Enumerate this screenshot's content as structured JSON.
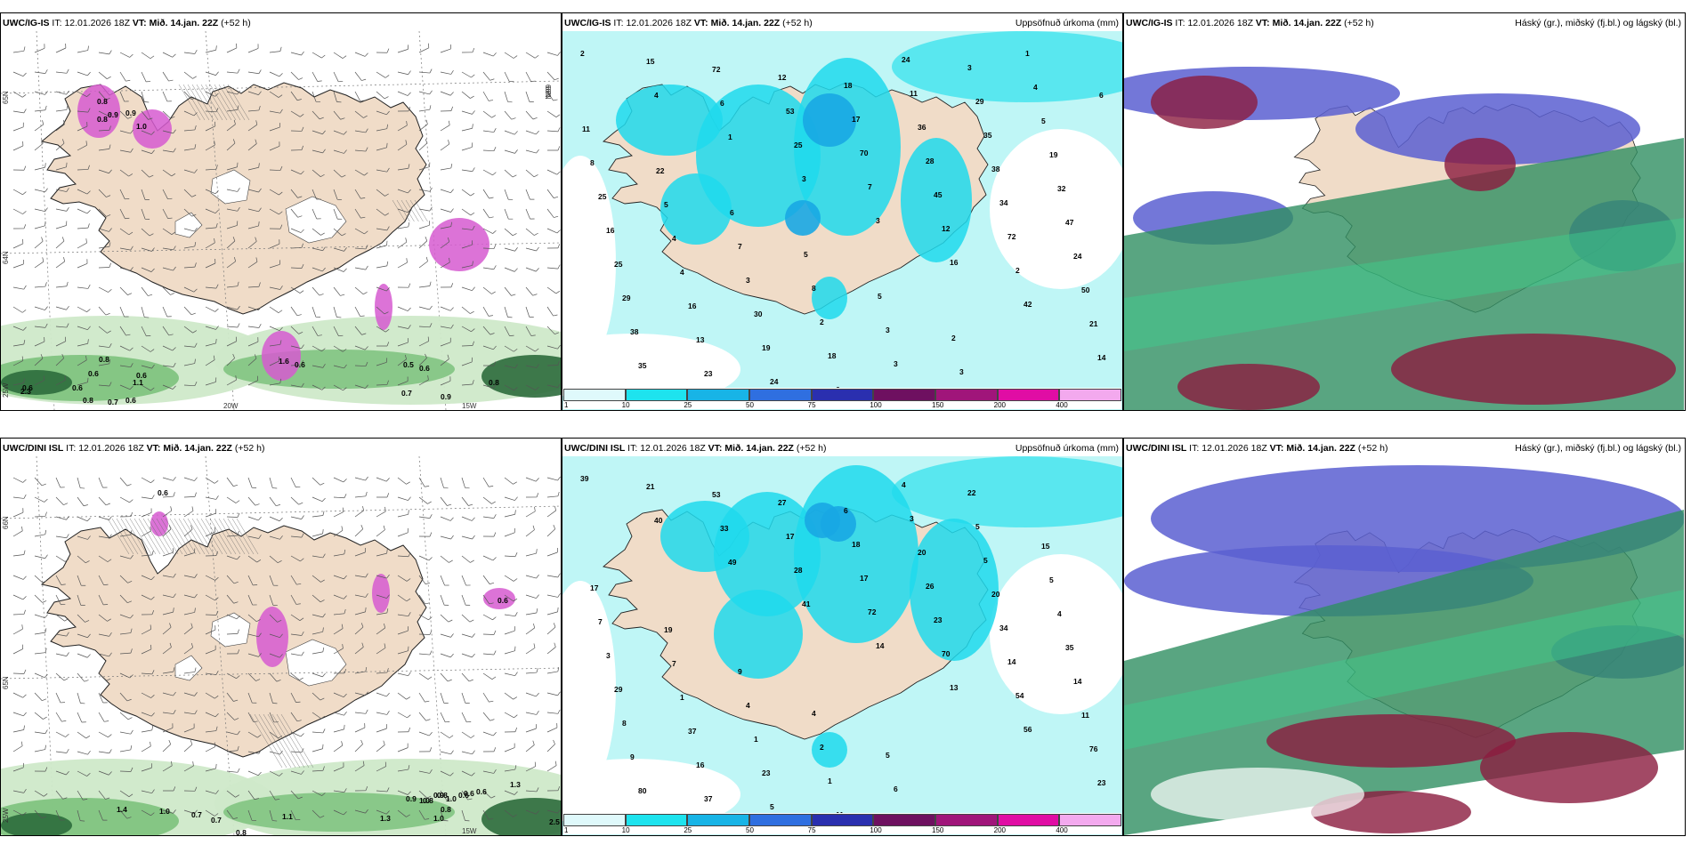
{
  "panels": [
    {
      "model": "UWC/IG-IS",
      "it_label": "IT:",
      "init": "12.01.2026 18Z",
      "vt_label": "VT:",
      "valid": "Mið. 14.jan. 22Z",
      "lead": "(+52 h)",
      "right_title": "",
      "type": "wind",
      "coords": [
        "65N",
        "64N",
        "20W",
        "15W",
        "25W",
        "66N",
        "66N"
      ],
      "labels": [
        "0.8",
        "0.9",
        "0.8",
        "0.9",
        "1.0",
        "0.6",
        "0.6",
        "0.8",
        "0.7",
        "0.6",
        "2.3",
        "0.8",
        "1.1",
        "0.6",
        "0.6",
        "0.5",
        "0.6",
        "0.8",
        "0.7",
        "0.9",
        "1.6",
        "0.6"
      ]
    },
    {
      "model": "UWC/IG-IS",
      "it_label": "IT:",
      "init": "12.01.2026 18Z",
      "vt_label": "VT:",
      "valid": "Mið. 14.jan. 22Z",
      "lead": "(+52 h)",
      "right_title": "Uppsöfnuð úrkoma (mm)",
      "type": "precip",
      "labels": [
        "2",
        "4",
        "1",
        "3",
        "3",
        "16",
        "42",
        "14",
        "15",
        "6",
        "25",
        "7",
        "12",
        "2",
        "21",
        "35",
        "72",
        "53",
        "70",
        "45",
        "72",
        "50",
        "38",
        "23",
        "12",
        "17",
        "28",
        "34",
        "24",
        "29",
        "13",
        "24",
        "18",
        "36",
        "38",
        "47",
        "25",
        "16",
        "19",
        "6",
        "11",
        "35",
        "32",
        "16",
        "4",
        "30",
        "18",
        "24",
        "29",
        "19",
        "25",
        "4",
        "3",
        "2",
        "3",
        "3",
        "5",
        "8",
        "5",
        "7",
        "8",
        "3",
        "3",
        "4",
        "11",
        "22",
        "6",
        "5",
        "5",
        "2",
        "1",
        "6"
      ],
      "legend_ticks": [
        "1",
        "10",
        "25",
        "50",
        "75",
        "100",
        "150",
        "200",
        "400"
      ]
    },
    {
      "model": "UWC/IG-IS",
      "it_label": "IT:",
      "init": "12.01.2026 18Z",
      "vt_label": "VT:",
      "valid": "Mið. 14.jan. 22Z",
      "lead": "(+52 h)",
      "right_title": "Háský (gr.), miðský (fj.bl.) og lágský (bl.)",
      "type": "cloud"
    },
    {
      "model": "UWC/DINI ISL",
      "it_label": "IT:",
      "init": "12.01.2026 18Z",
      "vt_label": "VT:",
      "valid": "Mið. 14.jan. 22Z",
      "lead": "(+52 h)",
      "right_title": "",
      "type": "wind",
      "coords": [
        "66N",
        "65N",
        "25W",
        "15W"
      ],
      "labels": [
        "0.6",
        "1.4",
        "1.0",
        "0.7",
        "0.7",
        "0.8",
        "1.1",
        "1.3",
        "0.9",
        "0.8",
        "1.0",
        "0.6",
        "0.6",
        "0.6",
        "1.3",
        "2.5",
        "0.6",
        "0.8",
        "0.9",
        "1.0",
        "0.8",
        "1.0"
      ]
    },
    {
      "model": "UWC/DINI ISL",
      "it_label": "IT:",
      "init": "12.01.2026 18Z",
      "vt_label": "VT:",
      "valid": "Mið. 14.jan. 22Z",
      "lead": "(+52 h)",
      "right_title": "Uppsöfnuð úrkoma (mm)",
      "type": "precip",
      "labels": [
        "39",
        "40",
        "49",
        "41",
        "14",
        "13",
        "56",
        "23",
        "21",
        "33",
        "28",
        "72",
        "70",
        "54",
        "76",
        "80",
        "53",
        "17",
        "17",
        "23",
        "14",
        "11",
        "9",
        "37",
        "27",
        "18",
        "26",
        "34",
        "14",
        "8",
        "16",
        "5",
        "6",
        "20",
        "20",
        "35",
        "29",
        "37",
        "23",
        "11",
        "3",
        "5",
        "4",
        "3",
        "1",
        "1",
        "1",
        "4",
        "5",
        "5",
        "7",
        "7",
        "4",
        "2",
        "6",
        "22",
        "15",
        "17",
        "19",
        "9",
        "4",
        "5"
      ],
      "legend_ticks": [
        "1",
        "10",
        "25",
        "50",
        "75",
        "100",
        "150",
        "200",
        "400"
      ]
    },
    {
      "model": "UWC/DINI ISL",
      "it_label": "IT:",
      "init": "12.01.2026 18Z",
      "vt_label": "VT:",
      "valid": "Mið. 14.jan. 22Z",
      "lead": "(+52 h)",
      "right_title": "Háský (gr.), miðský (fj.bl.) og lágský (bl.)",
      "type": "cloud"
    }
  ],
  "legend_colors": [
    "#dff9fb",
    "#1ee3ee",
    "#18b4e6",
    "#2f6fe0",
    "#2a2faf",
    "#6e1060",
    "#a0157a",
    "#e00da4",
    "#f3a9ee"
  ],
  "colors": {
    "land": "#f0dcc8",
    "sea_precip": "#bff6f6",
    "green_light": "#cfe9c9",
    "green_mid": "#7cc27c",
    "green_dark": "#2c6b3c",
    "magenta": "#d65bd0"
  }
}
